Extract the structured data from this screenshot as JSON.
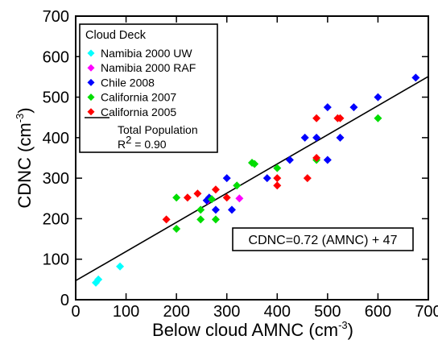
{
  "chart_data": {
    "type": "scatter",
    "xlabel": "Below cloud AMNC (cm",
    "xlabel_sup": "-3",
    "xlabel_end": ")",
    "ylabel": "CDNC (cm",
    "ylabel_sup": "-3",
    "ylabel_end": ")",
    "xlim": [
      0,
      700
    ],
    "ylim": [
      0,
      700
    ],
    "x_ticks": [
      0,
      100,
      200,
      300,
      400,
      500,
      600,
      700
    ],
    "y_ticks": [
      0,
      100,
      200,
      300,
      400,
      500,
      600,
      700
    ],
    "grid": false,
    "legend": {
      "title": "Cloud Deck",
      "placement": "top-left",
      "fit_label": "Total Population",
      "r2_prefix": "R",
      "r2_sup": "2",
      "r2_value": " = 0.90"
    },
    "series": [
      {
        "name": "Namibia 2000 UW",
        "color": "#00ffff",
        "points": [
          [
            40,
            42
          ],
          [
            45,
            50
          ],
          [
            88,
            82
          ]
        ]
      },
      {
        "name": "Namibia 2000 RAF",
        "color": "#ff00ff",
        "points": [
          [
            262,
            245
          ],
          [
            325,
            250
          ]
        ]
      },
      {
        "name": "Chile 2008",
        "color": "#0000ff",
        "points": [
          [
            675,
            548
          ],
          [
            600,
            500
          ],
          [
            552,
            475
          ],
          [
            500,
            475
          ],
          [
            525,
            400
          ],
          [
            478,
            400
          ],
          [
            455,
            400
          ],
          [
            425,
            345
          ],
          [
            500,
            345
          ],
          [
            380,
            300
          ],
          [
            300,
            300
          ],
          [
            260,
            245
          ],
          [
            265,
            252
          ],
          [
            270,
            248
          ],
          [
            278,
            222
          ],
          [
            310,
            222
          ]
        ]
      },
      {
        "name": "California 2007",
        "color": "#00dd00",
        "points": [
          [
            200,
            252
          ],
          [
            200,
            175
          ],
          [
            248,
            222
          ],
          [
            248,
            198
          ],
          [
            278,
            198
          ],
          [
            270,
            248
          ],
          [
            320,
            282
          ],
          [
            350,
            338
          ],
          [
            355,
            335
          ],
          [
            400,
            325
          ],
          [
            478,
            345
          ],
          [
            600,
            448
          ]
        ]
      },
      {
        "name": "California 2005",
        "color": "#ff0000",
        "points": [
          [
            180,
            198
          ],
          [
            222,
            252
          ],
          [
            242,
            262
          ],
          [
            278,
            272
          ],
          [
            300,
            252
          ],
          [
            400,
            300
          ],
          [
            400,
            282
          ],
          [
            460,
            300
          ],
          [
            478,
            448
          ],
          [
            478,
            350
          ],
          [
            520,
            448
          ],
          [
            525,
            448
          ]
        ]
      }
    ],
    "fit": {
      "slope": 0.72,
      "intercept": 47,
      "x_range": [
        0,
        700
      ],
      "color": "#000000"
    },
    "annotation": "CDNC=0.72 (AMNC) + 47"
  }
}
